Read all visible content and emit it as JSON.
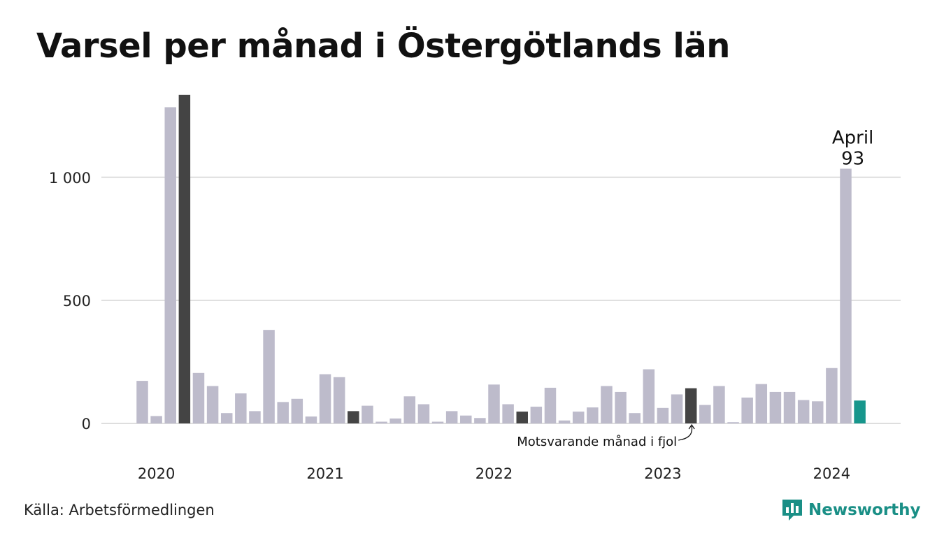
{
  "title": "Varsel per månad i Östergötlands län",
  "source": "Källa: Arbetsförmedlingen",
  "brand": "Newsworthy",
  "colors": {
    "bar": "#bdbbcb",
    "same_month_last_years": "#444444",
    "current": "#17968c",
    "grid": "#dedede",
    "brand": "#1a8f86"
  },
  "chart_data": {
    "type": "bar",
    "ylim": [
      0,
      1340
    ],
    "yticks": [
      0,
      500,
      1000
    ],
    "ytick_labels": [
      "0",
      "500",
      "1 000"
    ],
    "grid": true,
    "xtick_labels": [
      {
        "label": "2020",
        "index": 1
      },
      {
        "label": "2021",
        "index": 13
      },
      {
        "label": "2022",
        "index": 25
      },
      {
        "label": "2023",
        "index": 37
      },
      {
        "label": "2024",
        "index": 49
      }
    ],
    "start": "2020-01",
    "values": [
      173,
      30,
      1285,
      1335,
      205,
      152,
      42,
      122,
      50,
      380,
      87,
      100,
      28,
      200,
      188,
      50,
      72,
      7,
      20,
      110,
      78,
      7,
      50,
      32,
      22,
      158,
      78,
      48,
      68,
      145,
      12,
      48,
      65,
      152,
      128,
      42,
      220,
      63,
      118,
      143,
      75,
      152,
      5,
      105,
      160,
      128,
      128,
      95,
      90,
      225,
      1035,
      93
    ],
    "highlight_indices": [
      3,
      15,
      27,
      39
    ],
    "current_index": 51,
    "annotation": {
      "month": "April",
      "value": "93"
    },
    "note": "Motsvarande månad i fjol"
  }
}
